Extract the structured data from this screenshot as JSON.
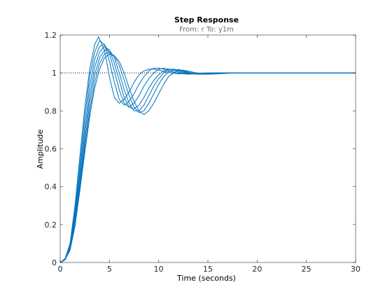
{
  "chart_data": {
    "type": "line",
    "title": "Step Response",
    "subtitle": "From: r  To: y1m",
    "xlabel": "Time (seconds)",
    "ylabel": "Amplitude",
    "xlim": [
      0,
      30
    ],
    "ylim": [
      0,
      1.2
    ],
    "xticks": [
      "0",
      "5",
      "10",
      "15",
      "20",
      "25",
      "30"
    ],
    "yticks": [
      "0",
      "0.2",
      "0.4",
      "0.6",
      "0.8",
      "1",
      "1.2"
    ],
    "grid": false,
    "reference_line": {
      "y": 1,
      "style": "dotted"
    },
    "line_color": "#0072BD",
    "series": [
      {
        "x": [
          0,
          0.5,
          1,
          1.5,
          2,
          2.5,
          3,
          3.5,
          3.9,
          4.5,
          5,
          5.5,
          6,
          6.5,
          7,
          7.5,
          8,
          8.5,
          9,
          9.5,
          10,
          10.5,
          11,
          12,
          13,
          14,
          15,
          16,
          17,
          20,
          25,
          30
        ],
        "y": [
          0,
          0.02,
          0.1,
          0.3,
          0.56,
          0.82,
          1.02,
          1.15,
          1.19,
          1.12,
          0.98,
          0.87,
          0.84,
          0.86,
          0.9,
          0.95,
          0.99,
          1.01,
          1.02,
          1.02,
          1.015,
          1.008,
          1.002,
          0.995,
          0.995,
          0.998,
          1.0,
          1.0,
          1.0,
          1.0,
          1.0,
          1.0
        ]
      },
      {
        "x": [
          0,
          0.5,
          1,
          1.5,
          2,
          2.5,
          3,
          3.5,
          4,
          4.5,
          5,
          5.5,
          6,
          6.5,
          7,
          7.5,
          8,
          8.5,
          9,
          9.5,
          10,
          10.5,
          11,
          12,
          13,
          14,
          15,
          16,
          17,
          20,
          25,
          30
        ],
        "y": [
          0,
          0.02,
          0.09,
          0.27,
          0.52,
          0.77,
          0.98,
          1.11,
          1.17,
          1.15,
          1.06,
          0.95,
          0.86,
          0.83,
          0.85,
          0.89,
          0.94,
          0.98,
          1.01,
          1.025,
          1.025,
          1.02,
          1.01,
          0.998,
          0.993,
          0.996,
          0.999,
          1.0,
          1.0,
          1.0,
          1.0,
          1.0
        ]
      },
      {
        "x": [
          0,
          0.5,
          1,
          1.5,
          2,
          2.5,
          3,
          3.5,
          4,
          4.5,
          5,
          5.5,
          6,
          6.5,
          7,
          7.5,
          8,
          8.5,
          9,
          9.5,
          10,
          10.5,
          11,
          11.5,
          12,
          13,
          14,
          15,
          16,
          17,
          20,
          25,
          30
        ],
        "y": [
          0,
          0.018,
          0.085,
          0.25,
          0.48,
          0.72,
          0.93,
          1.07,
          1.14,
          1.15,
          1.1,
          1.01,
          0.91,
          0.84,
          0.82,
          0.84,
          0.88,
          0.93,
          0.97,
          1.0,
          1.02,
          1.025,
          1.02,
          1.012,
          1.004,
          0.996,
          0.993,
          0.996,
          0.999,
          1.0,
          1.0,
          1.0,
          1.0
        ]
      },
      {
        "x": [
          0,
          0.5,
          1,
          1.5,
          2,
          2.5,
          3,
          3.5,
          4,
          4.5,
          5,
          5.5,
          6,
          6.5,
          7,
          7.5,
          8,
          8.5,
          9,
          9.5,
          10,
          10.5,
          11,
          11.5,
          12,
          12.5,
          13,
          14,
          15,
          16,
          17,
          20,
          25,
          30
        ],
        "y": [
          0,
          0.017,
          0.08,
          0.23,
          0.45,
          0.68,
          0.88,
          1.03,
          1.11,
          1.14,
          1.12,
          1.05,
          0.96,
          0.87,
          0.82,
          0.81,
          0.83,
          0.87,
          0.92,
          0.96,
          0.99,
          1.01,
          1.02,
          1.018,
          1.01,
          1.004,
          0.998,
          0.993,
          0.995,
          0.999,
          1.0,
          1.0,
          1.0,
          1.0
        ]
      },
      {
        "x": [
          0,
          0.5,
          1,
          1.5,
          2,
          2.5,
          3,
          3.5,
          4,
          4.5,
          5,
          5.5,
          6,
          6.5,
          7,
          7.5,
          8,
          8.5,
          9,
          9.5,
          10,
          10.5,
          11,
          11.5,
          12,
          12.5,
          13,
          14,
          15,
          16,
          17,
          18,
          20,
          25,
          30
        ],
        "y": [
          0,
          0.016,
          0.075,
          0.21,
          0.42,
          0.64,
          0.84,
          0.99,
          1.08,
          1.12,
          1.12,
          1.08,
          1.0,
          0.91,
          0.84,
          0.8,
          0.8,
          0.83,
          0.88,
          0.93,
          0.97,
          1.0,
          1.015,
          1.02,
          1.015,
          1.008,
          1.002,
          0.994,
          0.993,
          0.997,
          1.0,
          1.0,
          1.0,
          1.0,
          1.0
        ]
      },
      {
        "x": [
          0,
          0.5,
          1,
          1.5,
          2,
          2.5,
          3,
          3.5,
          4,
          4.5,
          5,
          5.5,
          6,
          6.5,
          7,
          7.5,
          8,
          8.5,
          9,
          9.5,
          10,
          10.5,
          11,
          11.5,
          12,
          12.5,
          13,
          13.5,
          14,
          15,
          16,
          17,
          18,
          20,
          25,
          30
        ],
        "y": [
          0,
          0.015,
          0.07,
          0.2,
          0.4,
          0.61,
          0.8,
          0.95,
          1.05,
          1.1,
          1.11,
          1.09,
          1.04,
          0.96,
          0.88,
          0.82,
          0.79,
          0.8,
          0.84,
          0.89,
          0.94,
          0.98,
          1.005,
          1.015,
          1.018,
          1.012,
          1.005,
          0.999,
          0.995,
          0.993,
          0.996,
          0.999,
          1.0,
          1.0,
          1.0,
          1.0
        ]
      },
      {
        "x": [
          0,
          0.5,
          1,
          1.5,
          2,
          2.5,
          3,
          3.5,
          4,
          4.5,
          5,
          5.5,
          6,
          6.5,
          7,
          7.5,
          8,
          8.5,
          9,
          9.5,
          10,
          10.5,
          11,
          11.5,
          12,
          12.5,
          13,
          13.5,
          14,
          15,
          16,
          17,
          18,
          20,
          25,
          30
        ],
        "y": [
          0,
          0.014,
          0.065,
          0.19,
          0.38,
          0.58,
          0.77,
          0.92,
          1.02,
          1.08,
          1.1,
          1.09,
          1.06,
          1.0,
          0.92,
          0.85,
          0.8,
          0.78,
          0.8,
          0.84,
          0.89,
          0.94,
          0.98,
          1.0,
          1.012,
          1.015,
          1.01,
          1.004,
          0.998,
          0.993,
          0.995,
          0.998,
          1.0,
          1.0,
          1.0,
          1.0
        ]
      }
    ]
  }
}
